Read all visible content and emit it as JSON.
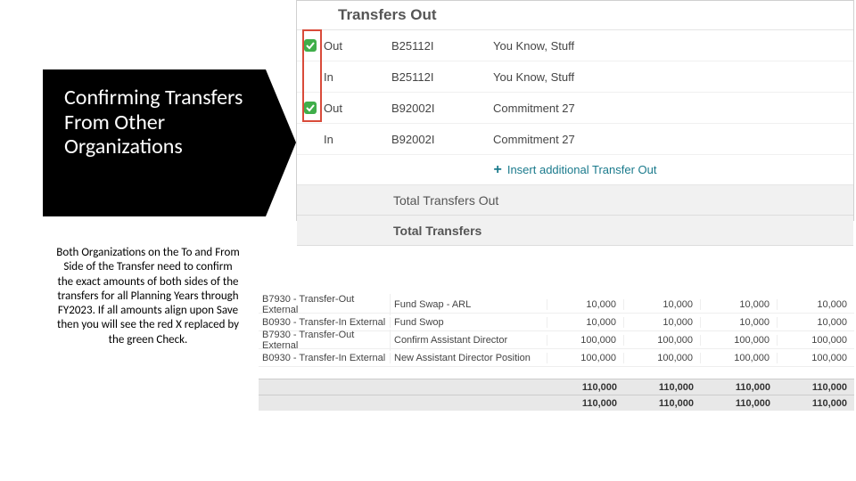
{
  "callout": {
    "title": "Confirming Transfers From Other Organizations",
    "body": "Both Organizations on the To and From Side of the Transfer need to confirm the exact amounts of both sides of the transfers for all Planning Years through FY2023. If all amounts align upon Save then you will see the red X replaced by the green Check."
  },
  "top_panel": {
    "header": "Transfers Out",
    "red_highlight_color": "#d94b3a",
    "check_badge_color": "#3fae4a",
    "rows": [
      {
        "check": true,
        "dir": "Out",
        "code": "B25112I",
        "desc": "You Know, Stuff"
      },
      {
        "check": false,
        "dir": "In",
        "code": "B25112I",
        "desc": "You Know, Stuff"
      },
      {
        "check": true,
        "dir": "Out",
        "code": "B92002I",
        "desc": "Commitment 27"
      },
      {
        "check": false,
        "dir": "In",
        "code": "B92002I",
        "desc": "Commitment 27"
      }
    ],
    "insert_label": "Insert additional Transfer Out",
    "total_out_label": "Total Transfers Out",
    "total_label": "Total Transfers"
  },
  "bottom_table": {
    "rows": [
      {
        "type": "B7930 - Transfer-Out External",
        "desc": "Fund Swap - ARL",
        "v": [
          "10,000",
          "10,000",
          "10,000",
          "10,000"
        ]
      },
      {
        "type": "B0930 - Transfer-In External",
        "desc": "Fund Swop",
        "v": [
          "10,000",
          "10,000",
          "10,000",
          "10,000"
        ]
      },
      {
        "type": "B7930 - Transfer-Out External",
        "desc": "Confirm Assistant Director",
        "v": [
          "100,000",
          "100,000",
          "100,000",
          "100,000"
        ]
      },
      {
        "type": "B0930 - Transfer-In External",
        "desc": "New Assistant Director Position",
        "v": [
          "100,000",
          "100,000",
          "100,000",
          "100,000"
        ]
      }
    ]
  },
  "totals": {
    "rows": [
      {
        "v": [
          "110,000",
          "110,000",
          "110,000",
          "110,000"
        ]
      },
      {
        "v": [
          "110,000",
          "110,000",
          "110,000",
          "110,000"
        ]
      }
    ]
  },
  "colors": {
    "callout_bg": "#000000",
    "callout_text": "#ffffff",
    "panel_border": "#d0d0d0",
    "row_text": "#454545",
    "link_teal": "#1a7a8c",
    "total_bg": "#f1f1f1",
    "totals_bg": "#e8e8e8"
  }
}
